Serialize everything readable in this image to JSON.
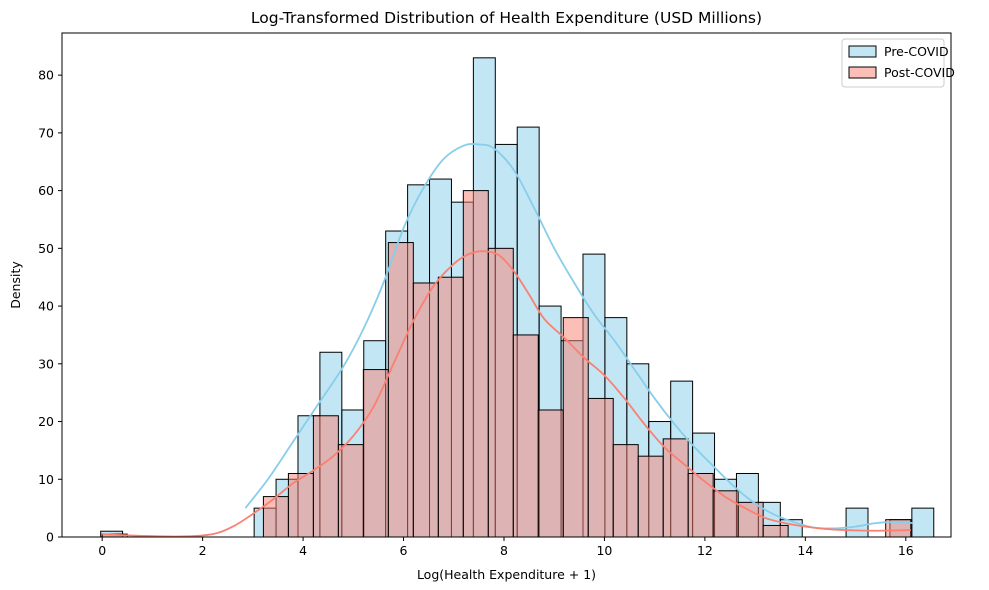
{
  "chart_data": {
    "type": "histogram",
    "title": "Log-Transformed Distribution of Health Expenditure (USD Millions)",
    "xlabel": "Log(Health Expenditure + 1)",
    "ylabel": "Density",
    "xlim": [
      -0.8,
      16.9
    ],
    "ylim": [
      0,
      87.3
    ],
    "xticks": [
      0,
      2,
      4,
      6,
      8,
      10,
      12,
      14,
      16
    ],
    "yticks": [
      0,
      10,
      20,
      30,
      40,
      50,
      60,
      70,
      80
    ],
    "grid": false,
    "legend_position": "top-right",
    "series": [
      {
        "name": "Pre-COVID",
        "face_color": "#87CEEB",
        "kde_color": "#87CEEB",
        "bin_start": -0.03,
        "bin_width": 0.4365,
        "counts": [
          1,
          0,
          0,
          0,
          0,
          0,
          0,
          5,
          10,
          21,
          32,
          22,
          34,
          53,
          61,
          62,
          58,
          83,
          68,
          71,
          40,
          34,
          49,
          38,
          30,
          20,
          27,
          18,
          10,
          11,
          6,
          3,
          0,
          0,
          5,
          0,
          3,
          5,
          0
        ],
        "kde": [
          [
            2.85,
            5
          ],
          [
            3.3,
            10
          ],
          [
            3.8,
            16.5
          ],
          [
            4.3,
            23
          ],
          [
            4.8,
            29.5
          ],
          [
            5.2,
            36
          ],
          [
            5.6,
            44
          ],
          [
            6.0,
            53.5
          ],
          [
            6.4,
            60.5
          ],
          [
            6.8,
            65.5
          ],
          [
            7.2,
            67.8
          ],
          [
            7.5,
            68
          ],
          [
            7.8,
            67.3
          ],
          [
            8.2,
            63.5
          ],
          [
            8.6,
            57
          ],
          [
            9.0,
            50
          ],
          [
            9.4,
            44
          ],
          [
            9.8,
            38.5
          ],
          [
            10.2,
            34
          ],
          [
            10.6,
            29
          ],
          [
            11.0,
            24
          ],
          [
            11.4,
            19.5
          ],
          [
            11.8,
            15.5
          ],
          [
            12.2,
            12
          ],
          [
            12.6,
            8.6
          ],
          [
            13.0,
            5.8
          ],
          [
            13.4,
            3.8
          ],
          [
            13.8,
            2.5
          ],
          [
            14.2,
            1.6
          ],
          [
            14.6,
            1.5
          ],
          [
            15.0,
            1.8
          ],
          [
            15.4,
            2.4
          ],
          [
            15.8,
            2.6
          ],
          [
            16.15,
            2.4
          ]
        ]
      },
      {
        "name": "Post-COVID",
        "face_color": "#FA8072",
        "kde_color": "#FA8072",
        "bin_start": 3.21,
        "bin_width": 0.4975,
        "counts": [
          7,
          11,
          21,
          16,
          29,
          51,
          44,
          45,
          60,
          50,
          35,
          22,
          38,
          24,
          16,
          14,
          17,
          11,
          8,
          6,
          2,
          0,
          0,
          0,
          0,
          0
        ],
        "tail_bins": [
          [
            15.6,
            16.1,
            3
          ]
        ],
        "low_bins": [
          [
            0.0,
            0.5,
            0.5
          ]
        ],
        "kde": [
          [
            0.0,
            0.5
          ],
          [
            0.8,
            0.2
          ],
          [
            1.6,
            0.1
          ],
          [
            2.2,
            0.5
          ],
          [
            2.6,
            1.8
          ],
          [
            3.0,
            4.0
          ],
          [
            3.4,
            6.5
          ],
          [
            3.8,
            9.3
          ],
          [
            4.2,
            11.5
          ],
          [
            4.6,
            14
          ],
          [
            5.0,
            17.5
          ],
          [
            5.4,
            22.5
          ],
          [
            5.8,
            30
          ],
          [
            6.2,
            37.5
          ],
          [
            6.6,
            43.5
          ],
          [
            7.0,
            47.3
          ],
          [
            7.3,
            49
          ],
          [
            7.6,
            49.5
          ],
          [
            7.9,
            48.8
          ],
          [
            8.2,
            46
          ],
          [
            8.5,
            42
          ],
          [
            8.8,
            37.8
          ],
          [
            9.2,
            34.5
          ],
          [
            9.6,
            31
          ],
          [
            10.0,
            28
          ],
          [
            10.4,
            24
          ],
          [
            10.8,
            19.5
          ],
          [
            11.2,
            15.5
          ],
          [
            11.6,
            12.5
          ],
          [
            12.0,
            9.6
          ],
          [
            12.4,
            7
          ],
          [
            12.8,
            5
          ],
          [
            13.2,
            3.3
          ],
          [
            13.6,
            2.4
          ],
          [
            14.0,
            1.8
          ],
          [
            14.4,
            1.4
          ],
          [
            14.8,
            1.2
          ],
          [
            15.2,
            1.1
          ],
          [
            15.6,
            1.1
          ],
          [
            16.1,
            1.2
          ]
        ]
      }
    ]
  }
}
